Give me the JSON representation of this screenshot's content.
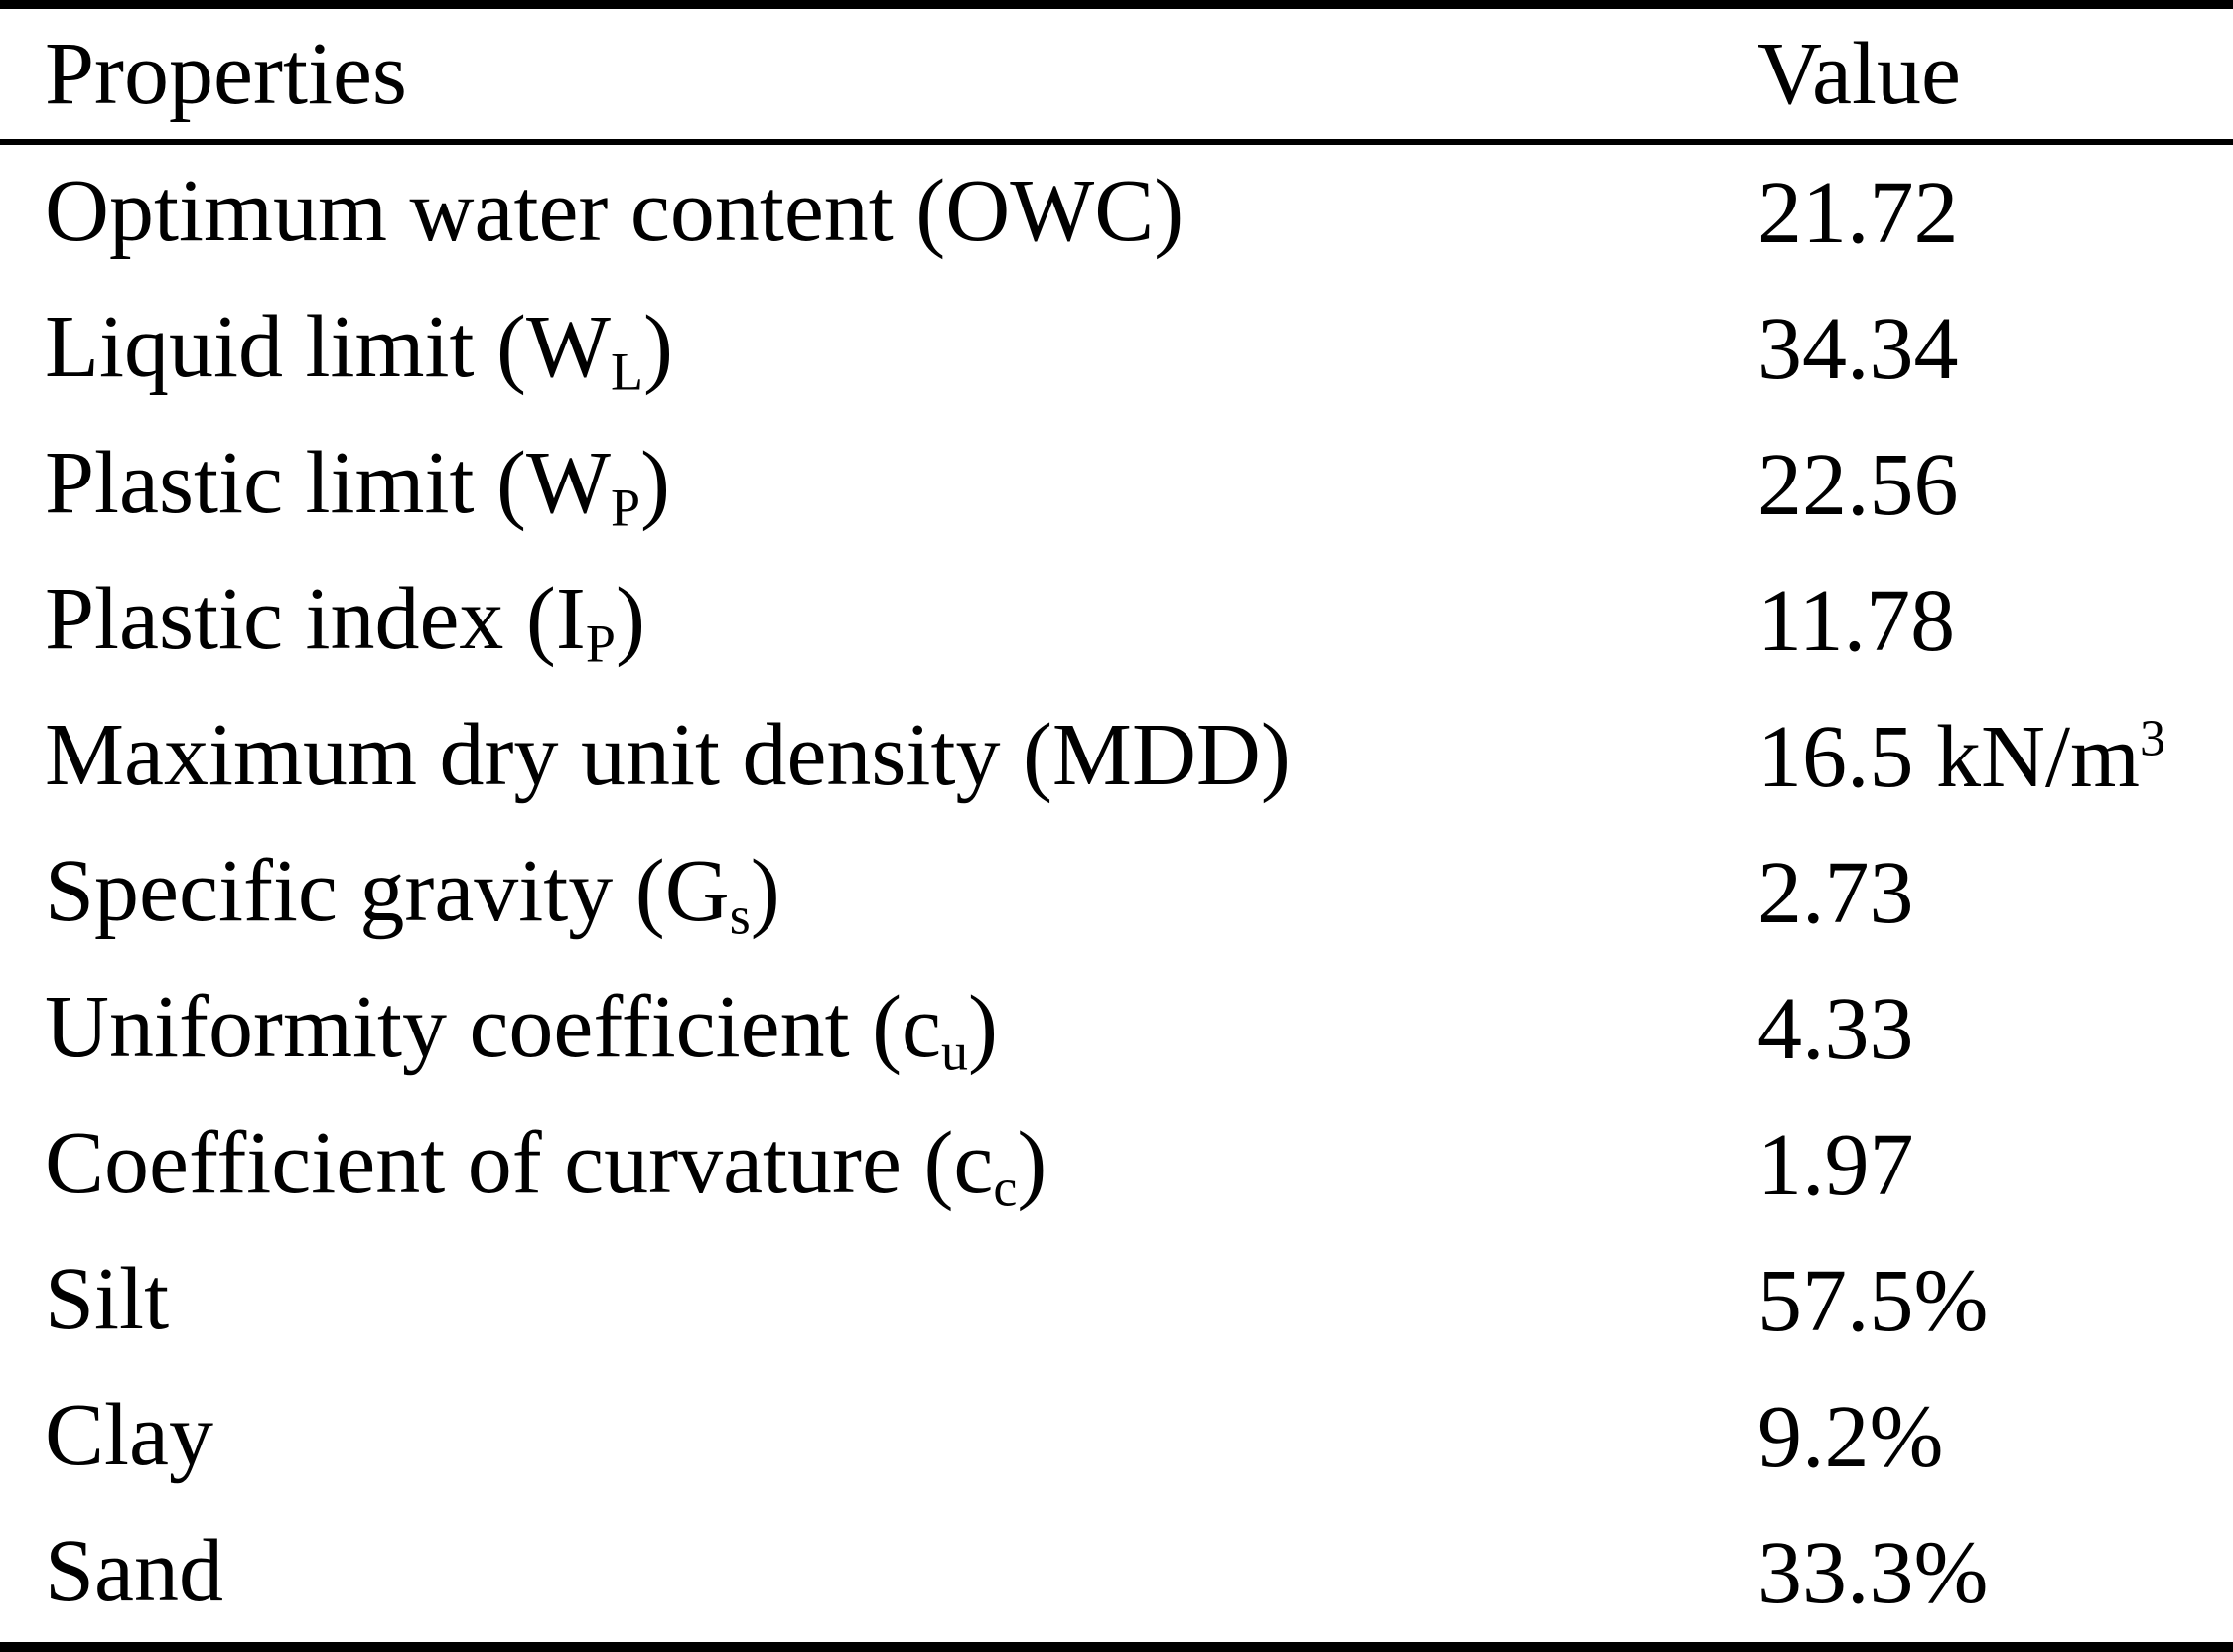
{
  "colors": {
    "background": "#ffffff",
    "text": "#000000",
    "rule": "#000000"
  },
  "table": {
    "header": {
      "property": "Properties",
      "value": "Value"
    },
    "rows": [
      {
        "label_pre": "Optimum water content (OWC)",
        "label_sub": "",
        "label_post": "",
        "value_pre": "21.72",
        "value_sup": ""
      },
      {
        "label_pre": "Liquid limit (W",
        "label_sub": "L",
        "label_post": ")",
        "value_pre": "34.34",
        "value_sup": ""
      },
      {
        "label_pre": "Plastic limit (W",
        "label_sub": "P",
        "label_post": ")",
        "value_pre": "22.56",
        "value_sup": ""
      },
      {
        "label_pre": "Plastic index (I",
        "label_sub": "P",
        "label_post": ")",
        "value_pre": "11.78",
        "value_sup": ""
      },
      {
        "label_pre": "Maximum dry unit density (MDD)",
        "label_sub": "",
        "label_post": "",
        "value_pre": "16.5 kN/m",
        "value_sup": "3"
      },
      {
        "label_pre": "Specific gravity (G",
        "label_sub": "s",
        "label_post": ")",
        "value_pre": "2.73",
        "value_sup": ""
      },
      {
        "label_pre": "Uniformity coefficient (c",
        "label_sub": "u",
        "label_post": ")",
        "value_pre": "4.33",
        "value_sup": ""
      },
      {
        "label_pre": "Coefficient of curvature (c",
        "label_sub": "c",
        "label_post": ")",
        "value_pre": "1.97",
        "value_sup": ""
      },
      {
        "label_pre": "Silt",
        "label_sub": "",
        "label_post": "",
        "value_pre": "57.5%",
        "value_sup": ""
      },
      {
        "label_pre": "Clay",
        "label_sub": "",
        "label_post": "",
        "value_pre": "9.2%",
        "value_sup": ""
      },
      {
        "label_pre": "Sand",
        "label_sub": "",
        "label_post": "",
        "value_pre": "33.3%",
        "value_sup": ""
      }
    ]
  }
}
